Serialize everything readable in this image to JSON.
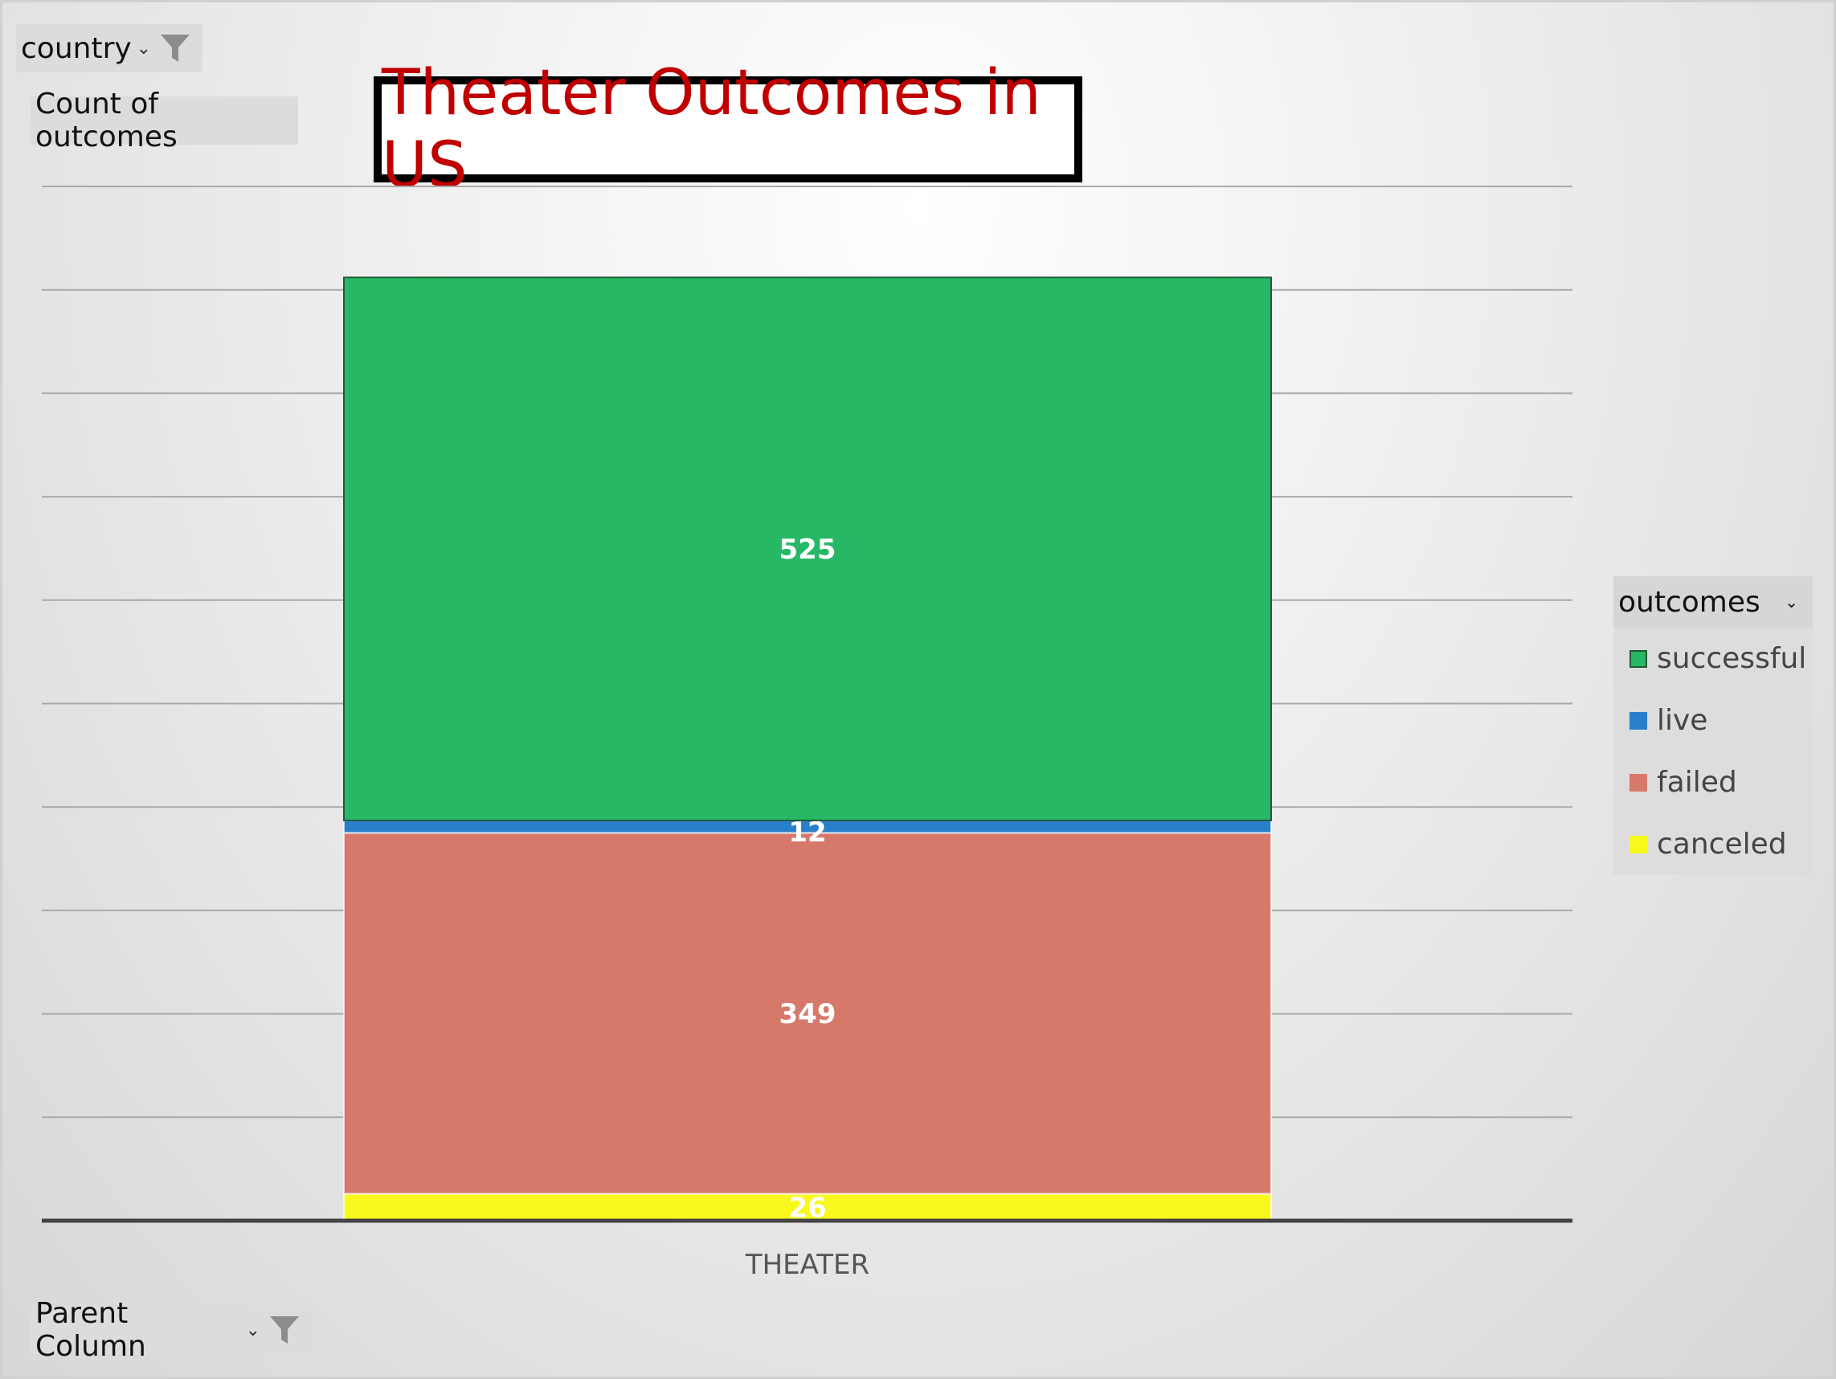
{
  "filters": {
    "country_label": "country",
    "values_label": "Count of outcomes",
    "axis_field_label": "Parent Column",
    "legend_field_label": "outcomes"
  },
  "colors": {
    "successful": "#27b865",
    "live": "#2a7fcb",
    "failed": "#d6796a",
    "canceled": "#f8f81e",
    "title": "#c00000"
  },
  "chart_data": {
    "type": "bar",
    "stacked": true,
    "title": "Theater Outcomes in US",
    "categories": [
      "THEATER"
    ],
    "series": [
      {
        "name": "canceled",
        "values": [
          26
        ]
      },
      {
        "name": "failed",
        "values": [
          349
        ]
      },
      {
        "name": "live",
        "values": [
          12
        ]
      },
      {
        "name": "successful",
        "values": [
          525
        ]
      }
    ],
    "ylim": [
      0,
      1000
    ],
    "grid": true,
    "data_labels": true,
    "legend": {
      "position": "right",
      "entries": [
        "successful",
        "live",
        "failed",
        "canceled"
      ]
    }
  }
}
